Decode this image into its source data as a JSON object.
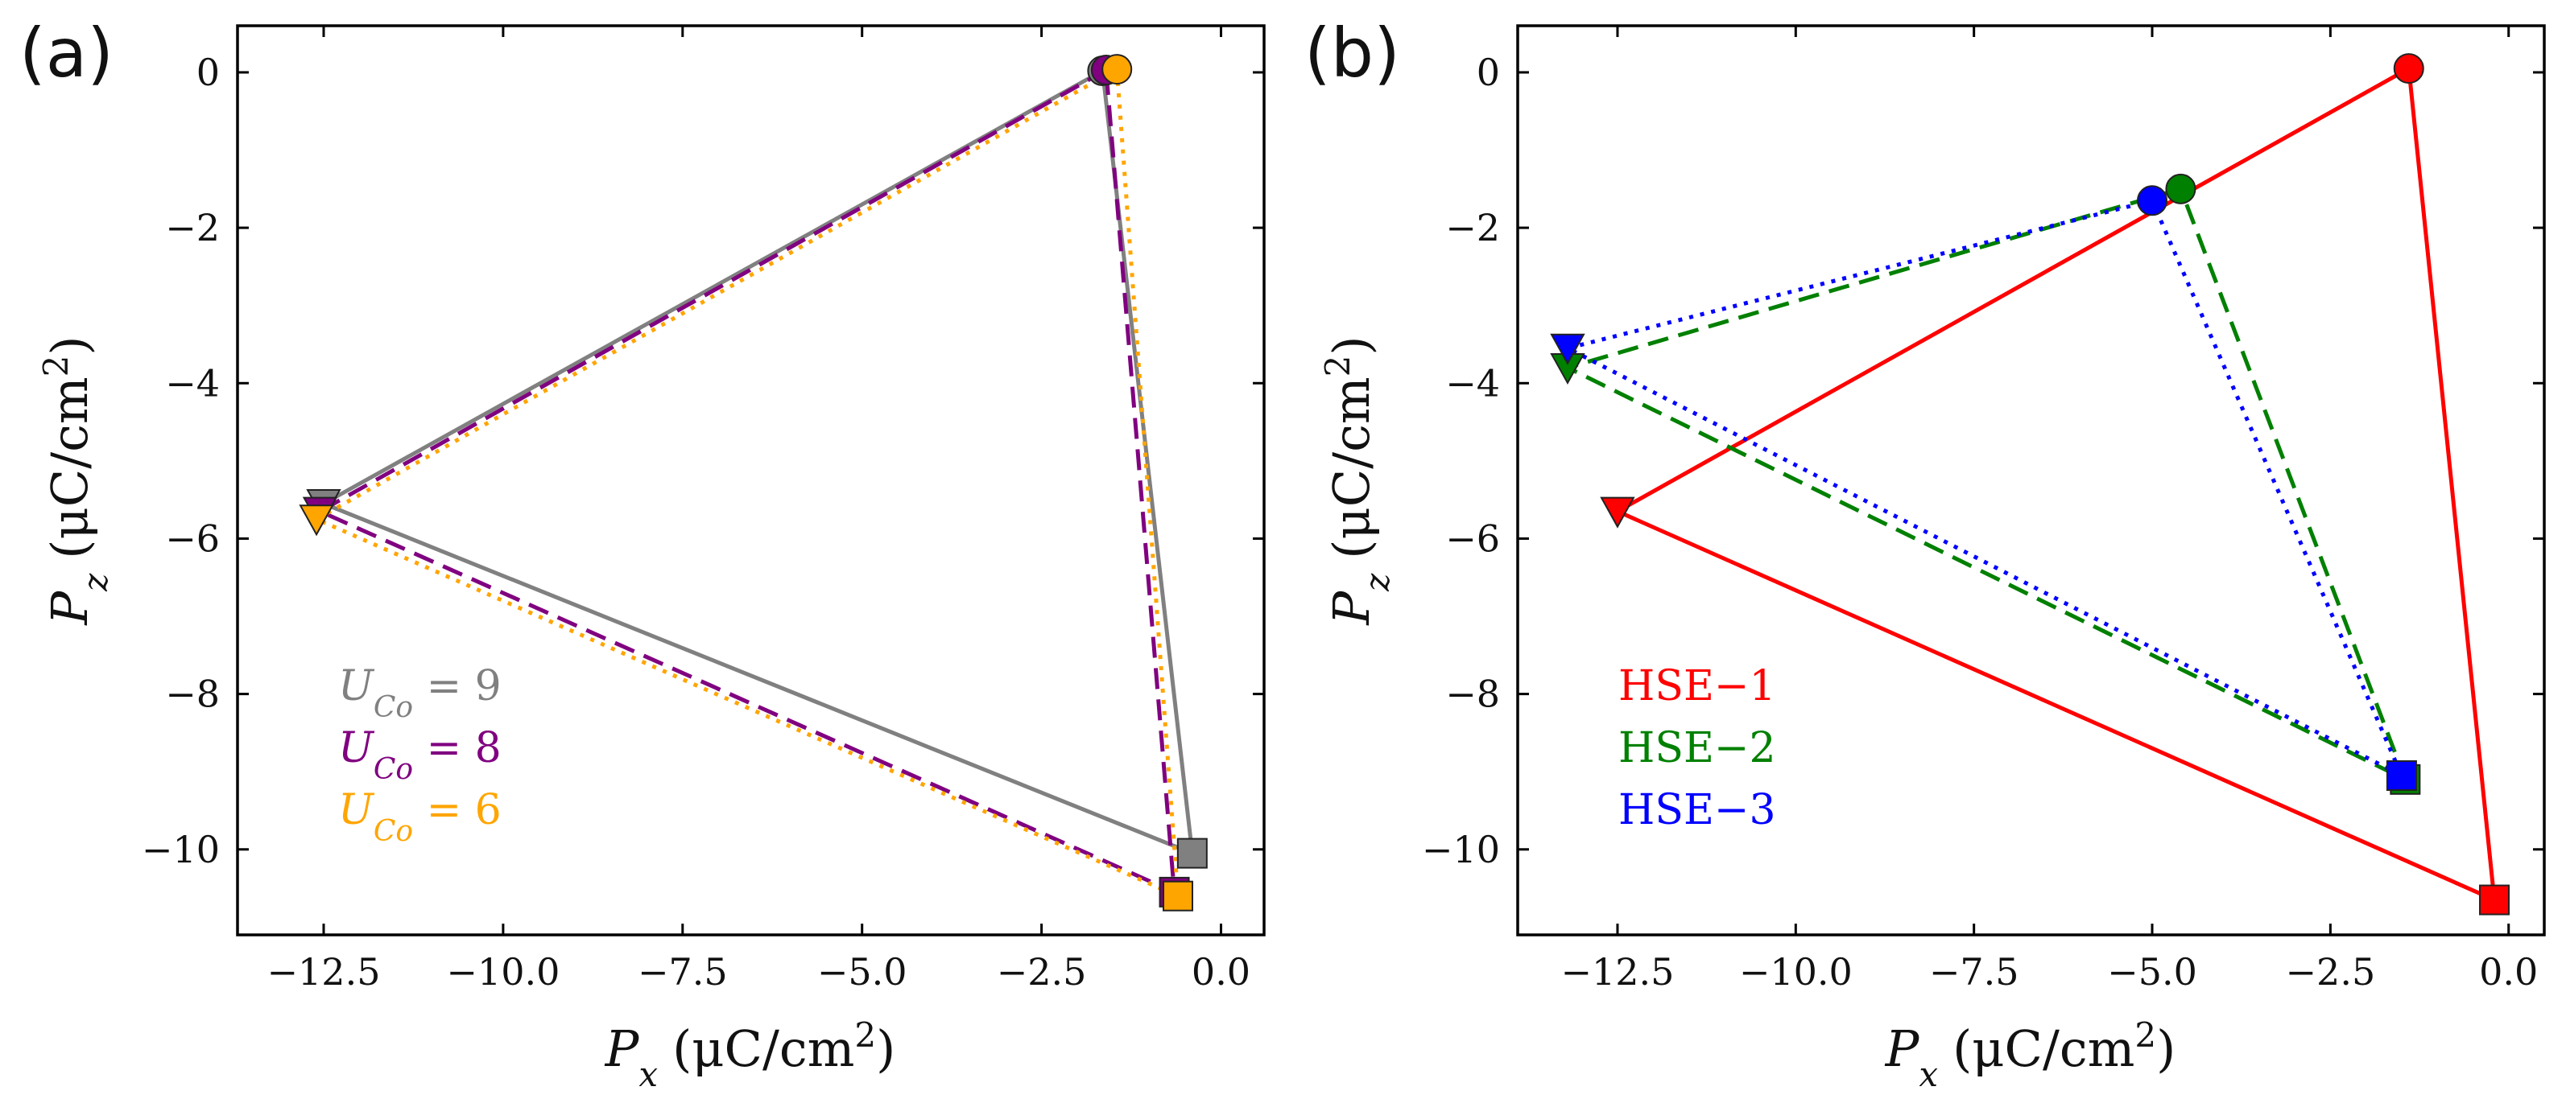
{
  "figure": {
    "panels": [
      "(a)",
      "(b)"
    ]
  },
  "chart_data": [
    {
      "type": "line",
      "panel_label": "(a)",
      "xlabel_var": "P",
      "xlabel_sub": "x",
      "xlabel_unit": "(μC/cm",
      "xlabel_exp": "2",
      "xlabel_close": ")",
      "ylabel_var": "P",
      "ylabel_sub": "z",
      "ylabel_unit": "(μC/cm",
      "ylabel_exp": "2",
      "ylabel_close": ")",
      "xlim": [
        -13.7,
        0.6
      ],
      "ylim": [
        -11.1,
        0.6
      ],
      "xticks": [
        -12.5,
        -10.0,
        -7.5,
        -5.0,
        -2.5,
        0.0
      ],
      "xtick_labels": [
        "−12.5",
        "−10.0",
        "−7.5",
        "−5.0",
        "−2.5",
        "0.0"
      ],
      "yticks": [
        0,
        -2,
        -4,
        -6,
        -8,
        -10
      ],
      "ytick_labels": [
        "0",
        "−2",
        "−4",
        "−6",
        "−8",
        "−10"
      ],
      "legend_position": "lower-left",
      "series": [
        {
          "name": "U_Co = 9",
          "legend_var": "U",
          "legend_sub": "Co",
          "legend_value": " = 9",
          "color": "#808080",
          "line_style": "solid",
          "points": [
            {
              "marker": "circle",
              "x": -1.65,
              "y": 0.02
            },
            {
              "marker": "triangle-down",
              "x": -12.5,
              "y": -5.55
            },
            {
              "marker": "square",
              "x": -0.4,
              "y": -10.05
            }
          ]
        },
        {
          "name": "U_Co = 8",
          "legend_var": "U",
          "legend_sub": "Co",
          "legend_value": " = 8",
          "color": "#800080",
          "line_style": "dashed",
          "points": [
            {
              "marker": "circle",
              "x": -1.6,
              "y": 0.03
            },
            {
              "marker": "triangle-down",
              "x": -12.55,
              "y": -5.65
            },
            {
              "marker": "square",
              "x": -0.65,
              "y": -10.55
            }
          ]
        },
        {
          "name": "U_Co = 6",
          "legend_var": "U",
          "legend_sub": "Co",
          "legend_value": " = 6",
          "color": "#FFA500",
          "line_style": "dotted",
          "points": [
            {
              "marker": "circle",
              "x": -1.45,
              "y": 0.04
            },
            {
              "marker": "triangle-down",
              "x": -12.6,
              "y": -5.75
            },
            {
              "marker": "square",
              "x": -0.6,
              "y": -10.6
            }
          ]
        }
      ]
    },
    {
      "type": "line",
      "panel_label": "(b)",
      "xlabel_var": "P",
      "xlabel_sub": "x",
      "xlabel_unit": "(μC/cm",
      "xlabel_exp": "2",
      "xlabel_close": ")",
      "ylabel_var": "P",
      "ylabel_sub": "z",
      "ylabel_unit": "(μC/cm",
      "ylabel_exp": "2",
      "ylabel_close": ")",
      "xlim": [
        -13.9,
        0.5
      ],
      "ylim": [
        -11.1,
        0.6
      ],
      "xticks": [
        -12.5,
        -10.0,
        -7.5,
        -5.0,
        -2.5,
        0.0
      ],
      "xtick_labels": [
        "−12.5",
        "−10.0",
        "−7.5",
        "−5.0",
        "−2.5",
        "0.0"
      ],
      "yticks": [
        0,
        -2,
        -4,
        -6,
        -8,
        -10
      ],
      "ytick_labels": [
        "0",
        "−2",
        "−4",
        "−6",
        "−8",
        "−10"
      ],
      "legend_position": "lower-left",
      "series": [
        {
          "name": "HSE−1",
          "legend_text": "HSE−1",
          "color": "#FF0000",
          "line_style": "solid",
          "points": [
            {
              "marker": "circle",
              "x": -1.4,
              "y": 0.05
            },
            {
              "marker": "triangle-down",
              "x": -12.5,
              "y": -5.65
            },
            {
              "marker": "square",
              "x": -0.2,
              "y": -10.65
            }
          ]
        },
        {
          "name": "HSE−2",
          "legend_text": "HSE−2",
          "color": "#008000",
          "line_style": "dashed",
          "points": [
            {
              "marker": "circle",
              "x": -4.6,
              "y": -1.5
            },
            {
              "marker": "triangle-down",
              "x": -13.2,
              "y": -3.8
            },
            {
              "marker": "square",
              "x": -1.45,
              "y": -9.1
            }
          ]
        },
        {
          "name": "HSE−3",
          "legend_text": "HSE−3",
          "color": "#0000FF",
          "line_style": "dotted",
          "points": [
            {
              "marker": "circle",
              "x": -5.0,
              "y": -1.65
            },
            {
              "marker": "triangle-down",
              "x": -13.2,
              "y": -3.55
            },
            {
              "marker": "square",
              "x": -1.5,
              "y": -9.05
            }
          ]
        }
      ]
    }
  ]
}
